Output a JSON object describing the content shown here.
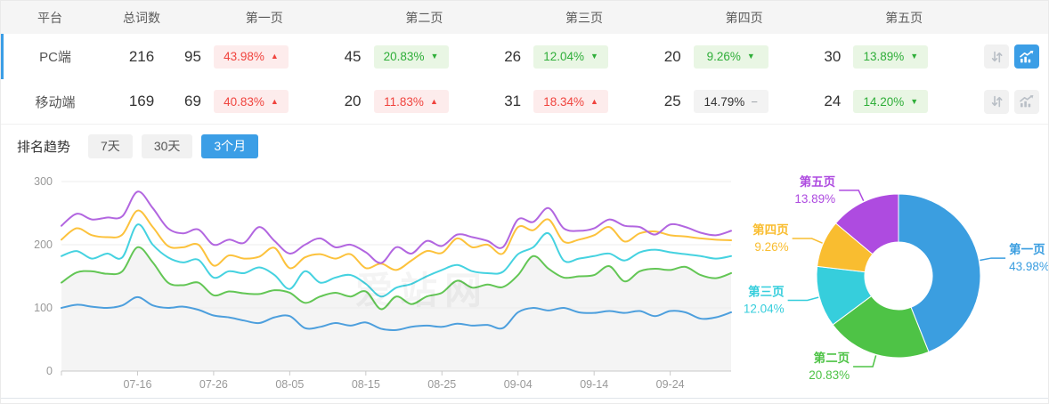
{
  "table": {
    "headers": {
      "platform": "平台",
      "total": "总词数",
      "pages": [
        "第一页",
        "第二页",
        "第三页",
        "第四页",
        "第五页"
      ]
    },
    "rows": [
      {
        "platform": "PC端",
        "total": "216",
        "selected": true,
        "chart_active": true,
        "pages": [
          {
            "count": "95",
            "pct": "43.98%",
            "trend": "up"
          },
          {
            "count": "45",
            "pct": "20.83%",
            "trend": "down"
          },
          {
            "count": "26",
            "pct": "12.04%",
            "trend": "down"
          },
          {
            "count": "20",
            "pct": "9.26%",
            "trend": "down"
          },
          {
            "count": "30",
            "pct": "13.89%",
            "trend": "down"
          }
        ]
      },
      {
        "platform": "移动端",
        "total": "169",
        "selected": false,
        "chart_active": false,
        "pages": [
          {
            "count": "69",
            "pct": "40.83%",
            "trend": "up"
          },
          {
            "count": "20",
            "pct": "11.83%",
            "trend": "up"
          },
          {
            "count": "31",
            "pct": "18.34%",
            "trend": "up"
          },
          {
            "count": "25",
            "pct": "14.79%",
            "trend": "flat"
          },
          {
            "count": "24",
            "pct": "14.20%",
            "trend": "down"
          }
        ]
      }
    ]
  },
  "filters": {
    "label": "排名趋势",
    "options": [
      {
        "label": "7天",
        "active": false
      },
      {
        "label": "30天",
        "active": false
      },
      {
        "label": "3个月",
        "active": true
      }
    ]
  },
  "watermark": "爱站网",
  "icons": {
    "up": "▲",
    "down": "▼",
    "flat": "−",
    "sort": "sort-arrows",
    "trend": "trend-line-chart"
  },
  "colors": {
    "accent": "#3B9EE6",
    "rise_red": "#F0443E",
    "fall_green": "#2FAE39",
    "header_bg": "#F5F5F5"
  },
  "chart_data": [
    {
      "type": "line",
      "title": "排名趋势",
      "active_range": "3个月",
      "x_start": "07-06",
      "x_interval_days": 2,
      "x_tick_labels": [
        "07-16",
        "07-26",
        "08-05",
        "08-15",
        "08-25",
        "09-04",
        "09-14",
        "09-24"
      ],
      "x_tick_indices": [
        5,
        10,
        15,
        20,
        25,
        30,
        35,
        40
      ],
      "y_ticks": [
        0,
        100,
        200,
        300
      ],
      "ylim": [
        0,
        300
      ],
      "grid": true,
      "legend": false,
      "series": [
        {
          "key": "page1",
          "name": "第一页",
          "color": "#4D9FDD",
          "fill": false,
          "values": [
            100,
            105,
            102,
            100,
            104,
            117,
            104,
            100,
            102,
            97,
            88,
            85,
            80,
            76,
            85,
            87,
            68,
            70,
            76,
            72,
            77,
            67,
            65,
            70,
            72,
            70,
            75,
            72,
            73,
            68,
            93,
            100,
            96,
            100,
            93,
            92,
            95,
            92,
            95,
            87,
            95,
            93,
            83,
            85,
            93
          ]
        },
        {
          "key": "page2",
          "name": "第二页",
          "color": "#63C655",
          "fill": true,
          "values": [
            140,
            156,
            158,
            154,
            158,
            196,
            172,
            140,
            136,
            140,
            120,
            126,
            123,
            122,
            128,
            124,
            108,
            118,
            124,
            118,
            126,
            98,
            118,
            106,
            118,
            124,
            143,
            132,
            137,
            133,
            152,
            182,
            162,
            148,
            150,
            152,
            166,
            142,
            158,
            162,
            160,
            165,
            152,
            147,
            155
          ]
        },
        {
          "key": "page3",
          "name": "第三页",
          "color": "#45D2E0",
          "fill": false,
          "values": [
            182,
            190,
            178,
            186,
            180,
            232,
            200,
            180,
            172,
            176,
            148,
            158,
            155,
            164,
            152,
            130,
            158,
            140,
            148,
            152,
            138,
            118,
            132,
            138,
            150,
            160,
            168,
            158,
            155,
            157,
            185,
            196,
            218,
            175,
            178,
            182,
            186,
            175,
            188,
            192,
            188,
            185,
            182,
            178,
            182
          ]
        },
        {
          "key": "page4",
          "name": "第四页",
          "color": "#FCC23C",
          "fill": false,
          "values": [
            208,
            226,
            215,
            212,
            216,
            254,
            228,
            198,
            196,
            200,
            167,
            183,
            178,
            181,
            195,
            163,
            180,
            185,
            178,
            185,
            163,
            170,
            160,
            175,
            190,
            187,
            210,
            196,
            200,
            186,
            228,
            223,
            240,
            205,
            208,
            215,
            228,
            205,
            218,
            221,
            215,
            213,
            210,
            208,
            207
          ]
        },
        {
          "key": "page5",
          "name": "第五页",
          "color": "#B266E0",
          "fill": false,
          "values": [
            230,
            249,
            240,
            243,
            245,
            284,
            258,
            226,
            218,
            224,
            200,
            208,
            203,
            228,
            206,
            186,
            200,
            210,
            196,
            200,
            188,
            171,
            196,
            186,
            206,
            198,
            216,
            212,
            206,
            196,
            240,
            236,
            258,
            226,
            222,
            226,
            240,
            230,
            228,
            216,
            232,
            228,
            219,
            215,
            222
          ]
        }
      ]
    },
    {
      "type": "pie",
      "donut": true,
      "slices": [
        {
          "key": "page1",
          "label": "第一页",
          "value": 43.98,
          "pct_label": "43.98%",
          "color": "#3B9EE0"
        },
        {
          "key": "page2",
          "label": "第二页",
          "value": 20.83,
          "pct_label": "20.83%",
          "color": "#4EC346"
        },
        {
          "key": "page3",
          "label": "第三页",
          "value": 12.04,
          "pct_label": "12.04%",
          "color": "#36CEDC"
        },
        {
          "key": "page4",
          "label": "第四页",
          "value": 9.26,
          "pct_label": "9.26%",
          "color": "#F9BD30"
        },
        {
          "key": "page5",
          "label": "第五页",
          "value": 13.89,
          "pct_label": "13.89%",
          "color": "#AE4BE0"
        }
      ]
    }
  ]
}
